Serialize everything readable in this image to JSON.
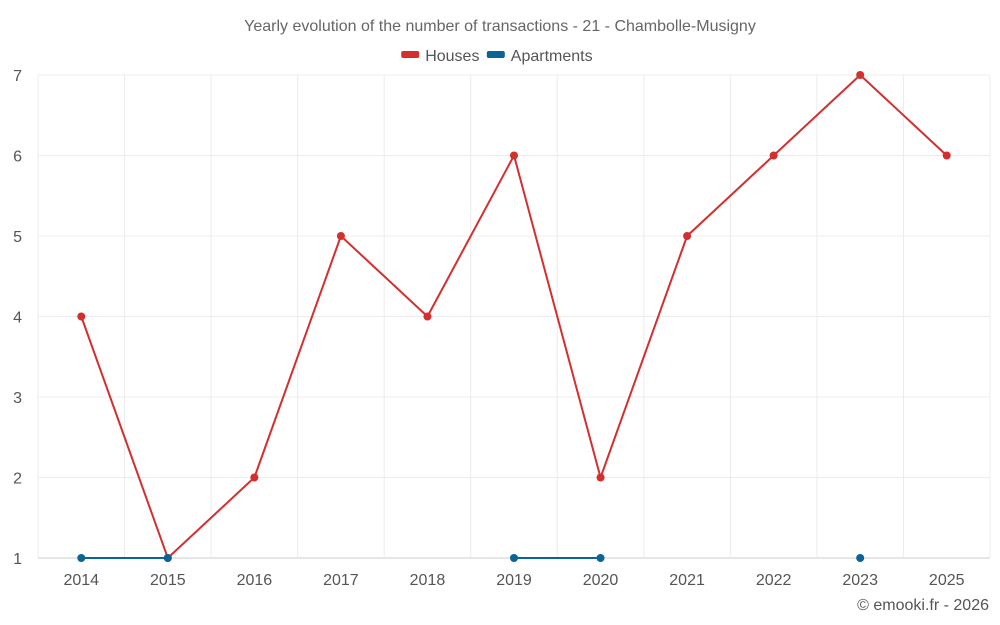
{
  "chart_data": {
    "type": "line",
    "title": "Yearly evolution of the number of transactions - 21 - Chambolle-Musigny",
    "categories": [
      "2014",
      "2015",
      "2016",
      "2017",
      "2018",
      "2019",
      "2020",
      "2021",
      "2022",
      "2023",
      "2025"
    ],
    "ylim": [
      1,
      7
    ],
    "yticks": [
      1,
      2,
      3,
      4,
      5,
      6,
      7
    ],
    "grid": true,
    "legend_position": "top-center",
    "series": [
      {
        "name": "Houses",
        "color": "#d32f2f",
        "values": [
          4,
          1,
          2,
          5,
          4,
          6,
          2,
          5,
          6,
          7,
          6
        ]
      },
      {
        "name": "Apartments",
        "color": "#0a6496",
        "values": [
          1,
          1,
          null,
          null,
          null,
          1,
          1,
          null,
          null,
          1,
          null
        ]
      }
    ]
  },
  "credit": "© emooki.fr - 2026"
}
